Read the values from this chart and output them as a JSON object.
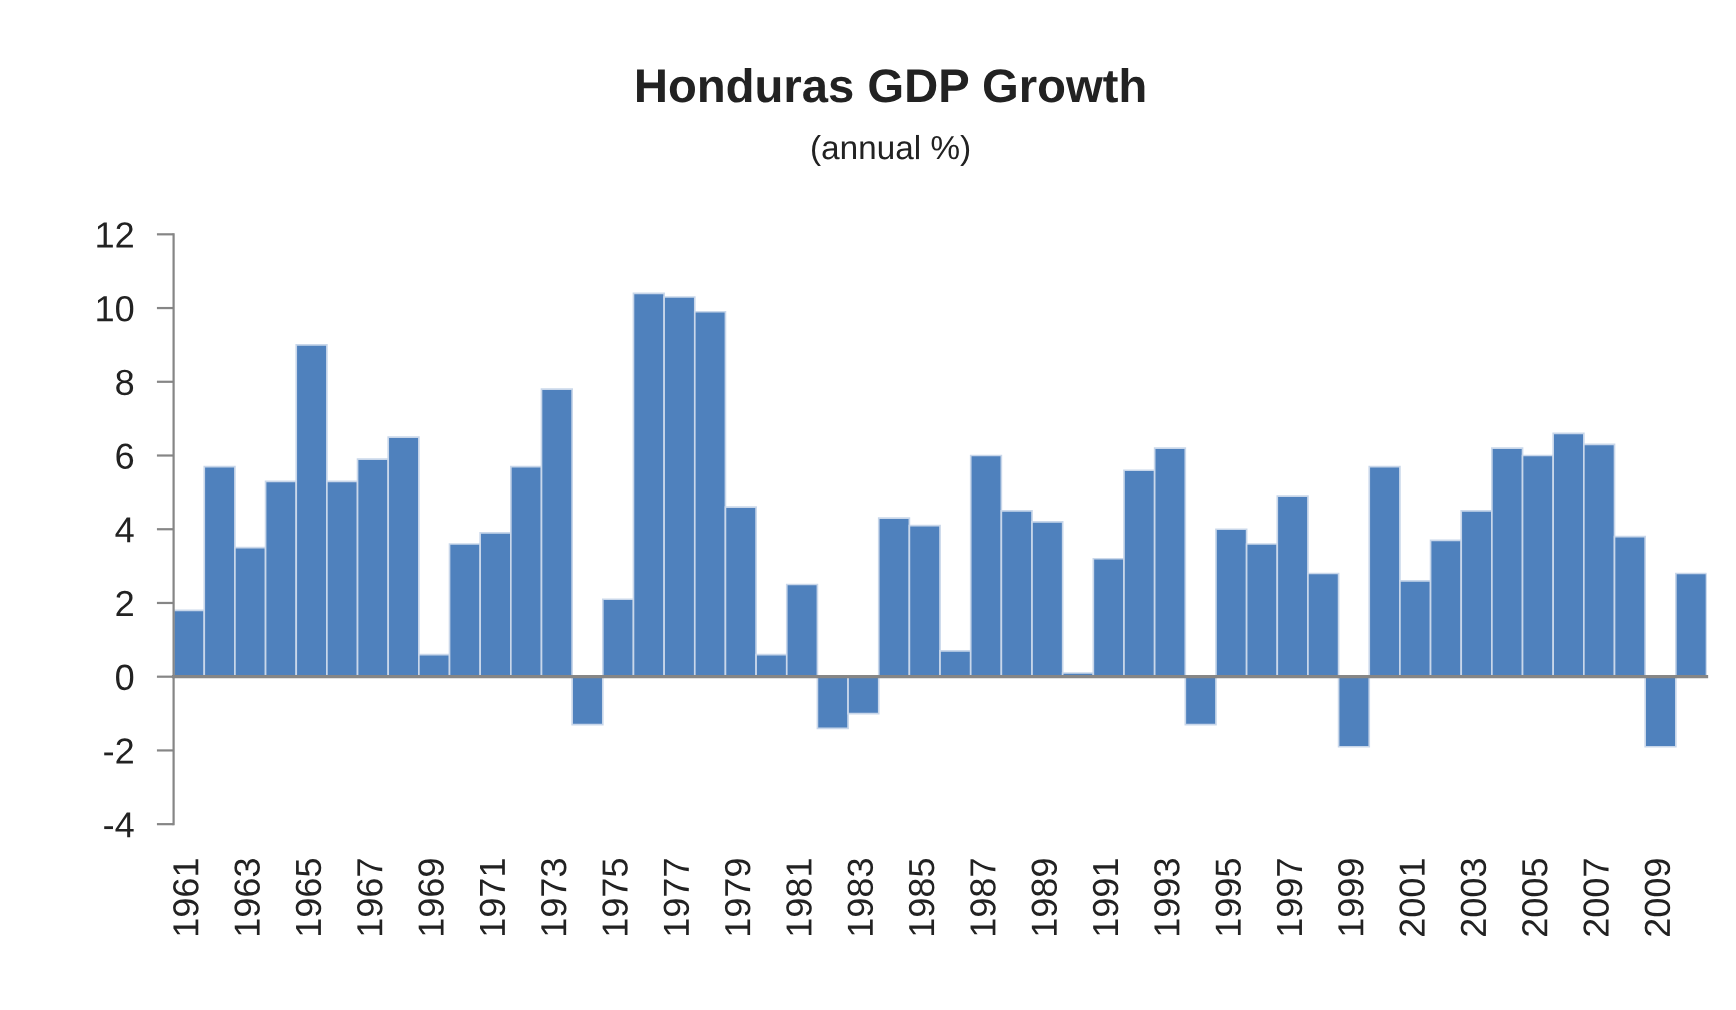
{
  "chart_data": {
    "type": "bar",
    "title": "Honduras GDP Growth",
    "subtitle": "(annual %)",
    "categories": [
      "1961",
      null,
      "1963",
      null,
      "1965",
      null,
      "1967",
      null,
      "1969",
      null,
      "1971",
      null,
      "1973",
      null,
      "1975",
      null,
      "1977",
      null,
      "1979",
      null,
      "1981",
      null,
      "1983",
      null,
      "1985",
      null,
      "1987",
      null,
      "1989",
      null,
      "1991",
      null,
      "1993",
      null,
      "1995",
      null,
      "1997",
      null,
      "1999",
      null,
      "2001",
      null,
      "2003",
      null,
      "2005",
      null,
      "2007",
      null,
      "2009",
      null
    ],
    "values": [
      1.8,
      5.7,
      3.5,
      5.3,
      9.0,
      5.3,
      5.9,
      6.5,
      0.6,
      3.6,
      3.9,
      5.7,
      7.8,
      -1.3,
      2.1,
      10.4,
      10.3,
      9.9,
      4.6,
      0.6,
      2.5,
      -1.4,
      -1.0,
      4.3,
      4.1,
      0.7,
      6.0,
      4.5,
      4.2,
      0.1,
      3.2,
      5.6,
      6.2,
      -1.3,
      4.0,
      3.6,
      4.9,
      2.8,
      -1.9,
      5.7,
      2.6,
      3.7,
      4.5,
      6.2,
      6.0,
      6.6,
      6.3,
      3.8,
      -1.9,
      2.8
    ],
    "color": "#4f81bd",
    "ylim": [
      -4,
      12
    ],
    "yticks": [
      -4,
      -2,
      0,
      2,
      4,
      6,
      8,
      10,
      12
    ]
  }
}
